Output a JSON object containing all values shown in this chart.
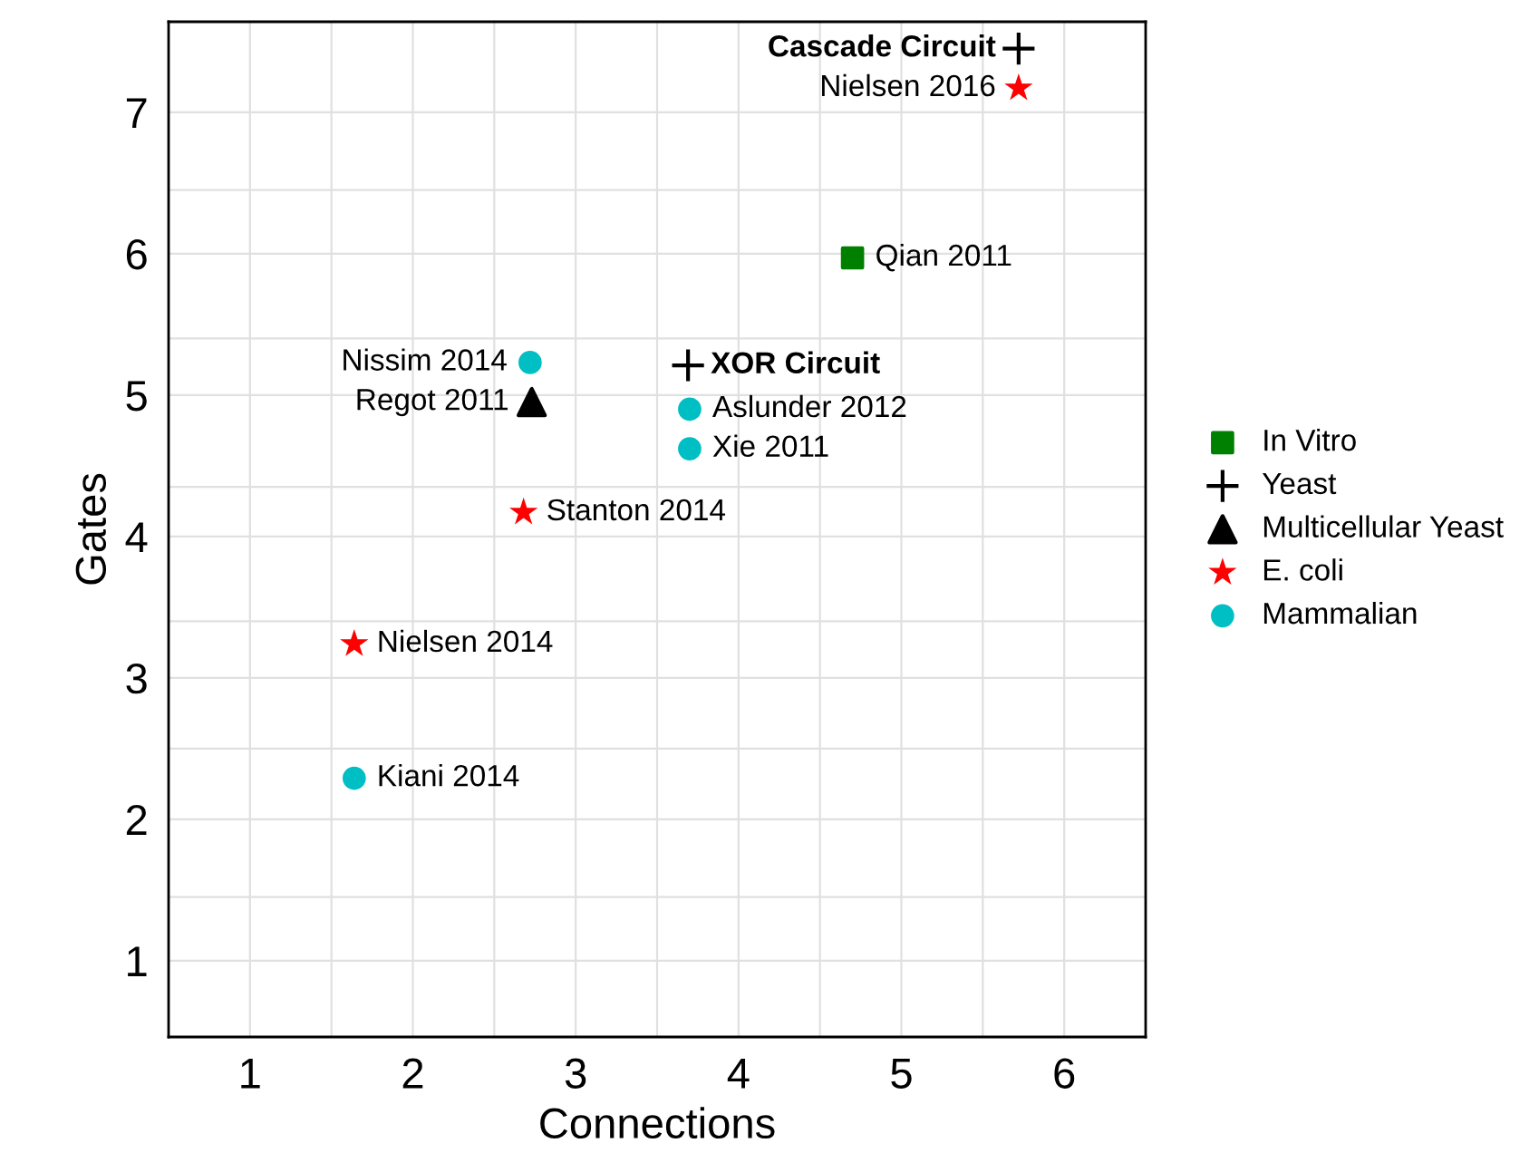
{
  "chart_data": {
    "type": "scatter",
    "xlabel": "Connections",
    "ylabel": "Gates",
    "xlim": [
      0.5,
      6.5
    ],
    "ylim": [
      0.46,
      7.64
    ],
    "xticks": [
      1,
      {
        "value": 1.5,
        "label": null
      },
      2,
      {
        "value": 2.5,
        "label": null
      },
      3,
      {
        "value": 3.5,
        "label": null
      },
      4,
      {
        "value": 4.5,
        "label": null
      },
      5,
      {
        "value": 5.5,
        "label": null
      },
      6
    ],
    "yticks": [
      1,
      {
        "value": 1.45,
        "label": null
      },
      2,
      {
        "value": 2.5,
        "label": null
      },
      3,
      {
        "value": 3.4,
        "label": null
      },
      4,
      {
        "value": 4.35,
        "label": null
      },
      5,
      {
        "value": 5.4,
        "label": null
      },
      6,
      {
        "value": 6.45,
        "label": null
      },
      7
    ],
    "grid": true,
    "legend": "right",
    "series": [
      {
        "name": "In Vitro",
        "color": "#008000",
        "marker": "square",
        "x": [
          4.7
        ],
        "values": [
          5.97
        ]
      },
      {
        "name": "Yeast",
        "color": "#000000",
        "marker": "cross",
        "x": [
          5.72,
          3.69
        ],
        "values": [
          7.45,
          5.21
        ]
      },
      {
        "name": "Multicellular Yeast",
        "color": "#000000",
        "marker": "triangle",
        "x": [
          2.73
        ],
        "values": [
          4.95
        ]
      },
      {
        "name": "E. coli",
        "color": "#ff0000",
        "marker": "star",
        "x": [
          5.72,
          2.68,
          1.64
        ],
        "values": [
          7.17,
          4.17,
          3.24
        ]
      },
      {
        "name": "Mammalian",
        "color": "#00bfc4",
        "marker": "circle",
        "x": [
          2.72,
          3.7,
          3.7,
          1.64
        ],
        "values": [
          5.23,
          4.9,
          4.62,
          2.29
        ]
      }
    ],
    "annotations": [
      {
        "text": "Cascade Circuit",
        "x": 5.72,
        "y": 7.45
      },
      {
        "text": "Nielsen 2016",
        "x": 5.72,
        "y": 7.17
      },
      {
        "text": "Qian 2011",
        "x": 4.7,
        "y": 5.97
      },
      {
        "text": "Nissim 2014",
        "x": 2.72,
        "y": 5.23
      },
      {
        "text": "XOR Circuit",
        "x": 3.69,
        "y": 5.21
      },
      {
        "text": "Regot 2011",
        "x": 2.73,
        "y": 4.95
      },
      {
        "text": "Aslunder 2012",
        "x": 3.7,
        "y": 4.9
      },
      {
        "text": "Xie 2011",
        "x": 3.7,
        "y": 4.62
      },
      {
        "text": "Stanton 2014",
        "x": 2.68,
        "y": 4.17
      },
      {
        "text": "Nielsen 2014",
        "x": 1.64,
        "y": 3.24
      },
      {
        "text": "Kiani 2014",
        "x": 1.64,
        "y": 2.29
      }
    ]
  }
}
